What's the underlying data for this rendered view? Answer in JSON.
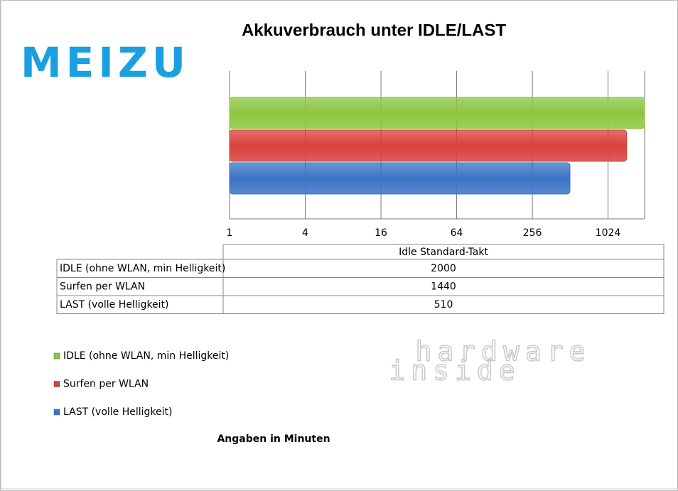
{
  "chart_data": {
    "type": "bar",
    "orientation": "horizontal",
    "title": "Akkuverbrauch unter IDLE/LAST",
    "categories": [
      "Idle Standard-Takt"
    ],
    "series": [
      {
        "name": "IDLE (ohne WLAN, min Helligkeit)",
        "color": "#8cc63f",
        "values": [
          2000
        ]
      },
      {
        "name": "Surfen per WLAN",
        "color": "#d8413c",
        "values": [
          1440
        ]
      },
      {
        "name": "LAST (volle Helligkeit)",
        "color": "#3b73c4",
        "values": [
          510
        ]
      }
    ],
    "xlim": [
      1,
      2000
    ],
    "xticks": [
      1,
      4,
      16,
      64,
      256,
      1024
    ],
    "log_scale": true,
    "grid": true,
    "footnote": "Angaben in Minuten"
  },
  "logos": {
    "left": "MEIZU",
    "right_top": "hardware",
    "right_bottom": "inside"
  }
}
